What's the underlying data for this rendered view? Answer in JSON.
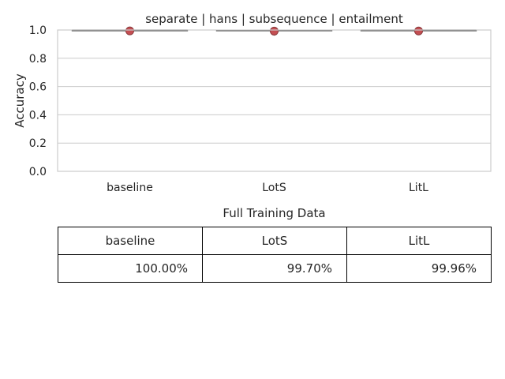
{
  "chart_data": {
    "type": "box",
    "title": "separate | hans | subsequence | entailment",
    "xlabel": "",
    "ylabel": "Accuracy",
    "ylim": [
      0.0,
      1.0
    ],
    "yticks": [
      "0.0",
      "0.2",
      "0.4",
      "0.6",
      "0.8",
      "1.0"
    ],
    "grid": true,
    "categories": [
      "baseline",
      "LotS",
      "LitL"
    ],
    "series": [
      {
        "category": "baseline",
        "median": 1.0,
        "q1": 1.0,
        "q3": 1.0,
        "mean": 0.9935,
        "outliers": []
      },
      {
        "category": "LotS",
        "median": 0.999,
        "q1": 0.999,
        "q3": 1.0,
        "mean": 0.992,
        "outliers": [
          0.975
        ]
      },
      {
        "category": "LitL",
        "median": 1.0,
        "q1": 0.999,
        "q3": 1.0,
        "mean": 0.993,
        "outliers": []
      }
    ],
    "colors": {
      "box_line": "#3a3a3a",
      "mean_marker": "#c44e52",
      "outlier": "#444444",
      "grid": "#cccccc",
      "spine": "#cccccc"
    }
  },
  "table": {
    "caption": "Full Training Data",
    "headers": [
      "baseline",
      "LotS",
      "LitL"
    ],
    "values": [
      "100.00%",
      "99.70%",
      "99.96%"
    ]
  }
}
